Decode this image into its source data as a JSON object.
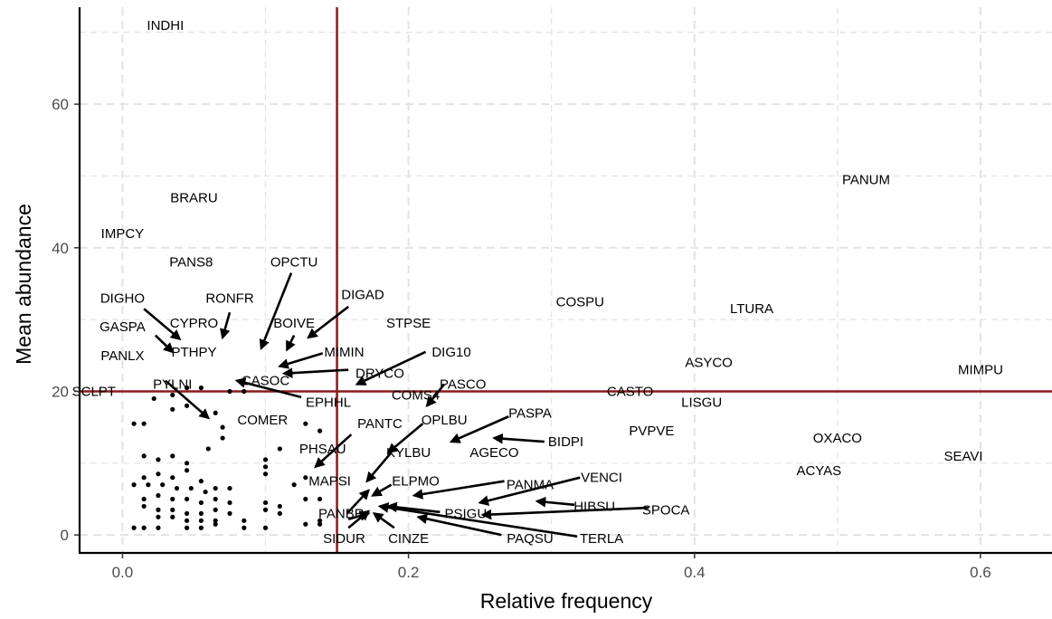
{
  "chart_data": {
    "type": "scatter",
    "xlabel": "Relative frequency",
    "ylabel": "Mean abundance",
    "xlim": [
      -0.03,
      0.65
    ],
    "ylim": [
      -2.5,
      73.5
    ],
    "x_ticks": [
      0.0,
      0.2,
      0.4,
      0.6
    ],
    "x_tick_labels": [
      "0.0",
      "0.2",
      "0.4",
      "0.6"
    ],
    "y_ticks": [
      0,
      20,
      40,
      60
    ],
    "y_tick_labels": [
      "0",
      "20",
      "40",
      "60"
    ],
    "grid": "dashed",
    "legend": "none",
    "colors": {
      "threshold_lines": "#8b1a1a",
      "points": "#000000",
      "grid": "#e3e3e3",
      "ticks": "#4d4d4d"
    },
    "thresholds": {
      "x": 0.15,
      "y": 20
    },
    "labeled_species": [
      {
        "name": "INDHI",
        "x": 0.03,
        "y": 71
      },
      {
        "name": "BRARU",
        "x": 0.05,
        "y": 47
      },
      {
        "name": "IMPCY",
        "x": 0.0,
        "y": 42
      },
      {
        "name": "PANS8",
        "x": 0.048,
        "y": 38
      },
      {
        "name": "DIGHO",
        "x": 0.0,
        "y": 33
      },
      {
        "name": "GASPA",
        "x": 0.0,
        "y": 29
      },
      {
        "name": "PANLX",
        "x": 0.0,
        "y": 25
      },
      {
        "name": "SCLPT",
        "x": -0.02,
        "y": 20
      },
      {
        "name": "CYPRO",
        "x": 0.05,
        "y": 29.5
      },
      {
        "name": "PTHPY",
        "x": 0.05,
        "y": 25.5
      },
      {
        "name": "PYLNI",
        "x": 0.035,
        "y": 21
      },
      {
        "name": "RONFR",
        "x": 0.075,
        "y": 33
      },
      {
        "name": "OPCTU",
        "x": 0.12,
        "y": 38
      },
      {
        "name": "BOIVE",
        "x": 0.12,
        "y": 29.5
      },
      {
        "name": "DIGAD",
        "x": 0.168,
        "y": 33.5
      },
      {
        "name": "MIMIN",
        "x": 0.155,
        "y": 25.5
      },
      {
        "name": "CASOC",
        "x": 0.1,
        "y": 21.5
      },
      {
        "name": "DRYCO",
        "x": 0.18,
        "y": 22.5
      },
      {
        "name": "EPHHL",
        "x": 0.144,
        "y": 18.5
      },
      {
        "name": "COMER",
        "x": 0.098,
        "y": 16
      },
      {
        "name": "STPSE",
        "x": 0.2,
        "y": 29.5
      },
      {
        "name": "DIG10",
        "x": 0.23,
        "y": 25.5
      },
      {
        "name": "COMS4",
        "x": 0.205,
        "y": 19.5
      },
      {
        "name": "PASCO",
        "x": 0.238,
        "y": 21
      },
      {
        "name": "PANTC",
        "x": 0.18,
        "y": 15.5
      },
      {
        "name": "OPLBU",
        "x": 0.225,
        "y": 16
      },
      {
        "name": "PASPA",
        "x": 0.285,
        "y": 17
      },
      {
        "name": "BIDPI",
        "x": 0.31,
        "y": 13
      },
      {
        "name": "KYLBU",
        "x": 0.2,
        "y": 11.5
      },
      {
        "name": "AGECO",
        "x": 0.26,
        "y": 11.5
      },
      {
        "name": "PHSAU",
        "x": 0.14,
        "y": 12
      },
      {
        "name": "MAPSI",
        "x": 0.145,
        "y": 7.5
      },
      {
        "name": "ELPMO",
        "x": 0.205,
        "y": 7.5
      },
      {
        "name": "PANMA",
        "x": 0.285,
        "y": 7
      },
      {
        "name": "VENCI",
        "x": 0.335,
        "y": 8
      },
      {
        "name": "HIBSU",
        "x": 0.33,
        "y": 4
      },
      {
        "name": "SPOCA",
        "x": 0.38,
        "y": 3.5
      },
      {
        "name": "PSIGU",
        "x": 0.24,
        "y": 3
      },
      {
        "name": "PANBR",
        "x": 0.153,
        "y": 3
      },
      {
        "name": "SIDUR",
        "x": 0.155,
        "y": -0.5
      },
      {
        "name": "CINZE",
        "x": 0.2,
        "y": -0.5
      },
      {
        "name": "PAQSU",
        "x": 0.285,
        "y": -0.5
      },
      {
        "name": "TERLA",
        "x": 0.335,
        "y": -0.5
      },
      {
        "name": "COSPU",
        "x": 0.32,
        "y": 32.5
      },
      {
        "name": "LTURA",
        "x": 0.44,
        "y": 31.5
      },
      {
        "name": "ASYCO",
        "x": 0.41,
        "y": 24
      },
      {
        "name": "CASTO",
        "x": 0.355,
        "y": 20
      },
      {
        "name": "LISGU",
        "x": 0.405,
        "y": 18.5
      },
      {
        "name": "PVPVE",
        "x": 0.37,
        "y": 14.5
      },
      {
        "name": "PANUM",
        "x": 0.52,
        "y": 49.5
      },
      {
        "name": "MIMPU",
        "x": 0.6,
        "y": 23
      },
      {
        "name": "OXACO",
        "x": 0.5,
        "y": 13.5
      },
      {
        "name": "SEAVI",
        "x": 0.588,
        "y": 11
      },
      {
        "name": "ACYAS",
        "x": 0.487,
        "y": 9
      }
    ],
    "unlabeled_points": [
      [
        0.008,
        15.5
      ],
      [
        0.015,
        15.5
      ],
      [
        0.022,
        19
      ],
      [
        0.035,
        19.5
      ],
      [
        0.045,
        20.5
      ],
      [
        0.055,
        20.5
      ],
      [
        0.035,
        17.5
      ],
      [
        0.045,
        18
      ],
      [
        0.065,
        17
      ],
      [
        0.075,
        20
      ],
      [
        0.085,
        20
      ],
      [
        0.07,
        15
      ],
      [
        0.07,
        13.5
      ],
      [
        0.06,
        12
      ],
      [
        0.015,
        11
      ],
      [
        0.025,
        10.5
      ],
      [
        0.035,
        11
      ],
      [
        0.045,
        10
      ],
      [
        0.015,
        8
      ],
      [
        0.025,
        8.5
      ],
      [
        0.035,
        8
      ],
      [
        0.045,
        9
      ],
      [
        0.055,
        7.5
      ],
      [
        0.065,
        6.5
      ],
      [
        0.075,
        6.5
      ],
      [
        0.008,
        7
      ],
      [
        0.018,
        7
      ],
      [
        0.028,
        7
      ],
      [
        0.038,
        6.5
      ],
      [
        0.048,
        6.5
      ],
      [
        0.058,
        6
      ],
      [
        0.015,
        5
      ],
      [
        0.025,
        5.5
      ],
      [
        0.035,
        5
      ],
      [
        0.045,
        5
      ],
      [
        0.055,
        4.5
      ],
      [
        0.065,
        5
      ],
      [
        0.075,
        4.5
      ],
      [
        0.015,
        4
      ],
      [
        0.025,
        3.5
      ],
      [
        0.035,
        3.5
      ],
      [
        0.045,
        3
      ],
      [
        0.055,
        3
      ],
      [
        0.065,
        3.5
      ],
      [
        0.075,
        3
      ],
      [
        0.025,
        2.5
      ],
      [
        0.035,
        2.5
      ],
      [
        0.045,
        2
      ],
      [
        0.055,
        2
      ],
      [
        0.065,
        2
      ],
      [
        0.085,
        2
      ],
      [
        0.008,
        1
      ],
      [
        0.015,
        1
      ],
      [
        0.025,
        1
      ],
      [
        0.045,
        1
      ],
      [
        0.055,
        1
      ],
      [
        0.065,
        1.5
      ],
      [
        0.085,
        1
      ],
      [
        0.1,
        10.5
      ],
      [
        0.1,
        9.5
      ],
      [
        0.1,
        8.5
      ],
      [
        0.1,
        4.5
      ],
      [
        0.1,
        3.5
      ],
      [
        0.1,
        1
      ],
      [
        0.11,
        12
      ],
      [
        0.11,
        4
      ],
      [
        0.11,
        3
      ],
      [
        0.12,
        7
      ],
      [
        0.128,
        15.5
      ],
      [
        0.128,
        8
      ],
      [
        0.128,
        5
      ],
      [
        0.128,
        1.5
      ],
      [
        0.138,
        14.5
      ],
      [
        0.138,
        5
      ],
      [
        0.138,
        2
      ],
      [
        0.138,
        1.5
      ]
    ],
    "arrows": [
      [
        "DIGHO",
        0.015,
        31.5,
        0.04,
        27.3
      ],
      [
        "GASPA",
        0.023,
        27.8,
        0.035,
        25.5
      ],
      [
        "SCLPT",
        0.03,
        21.5,
        0.06,
        16.3
      ],
      [
        "RONFR",
        0.075,
        31,
        0.07,
        27.5
      ],
      [
        "OPCTU",
        0.118,
        36.5,
        0.097,
        26
      ],
      [
        "BOIVE",
        0.12,
        27.8,
        0.115,
        25.8
      ],
      [
        "DIGAD",
        0.158,
        31.8,
        0.13,
        27.5
      ],
      [
        "MIMIN",
        0.14,
        25.3,
        0.11,
        23.5
      ],
      [
        "DRYCO",
        0.158,
        23,
        0.113,
        22.5
      ],
      [
        "DIG10",
        0.212,
        25.5,
        0.164,
        21
      ],
      [
        "EPHHL",
        0.125,
        19.2,
        0.08,
        21.5
      ],
      [
        "PASCO",
        0.225,
        21,
        0.213,
        18
      ],
      [
        "OPLBU",
        0.21,
        15.5,
        0.186,
        11.5
      ],
      [
        "PANTC",
        0.16,
        14,
        0.135,
        9.5
      ],
      [
        "PASPA",
        0.27,
        16.5,
        0.23,
        13
      ],
      [
        "BIDPI",
        0.295,
        13,
        0.26,
        13.5
      ],
      [
        "KYLBU",
        0.188,
        11.5,
        0.171,
        7.5
      ],
      [
        "VENCI",
        0.32,
        8,
        0.25,
        4.5
      ],
      [
        "PANMA",
        0.267,
        7.5,
        0.204,
        5.5
      ],
      [
        "ELPMO",
        0.188,
        7,
        0.175,
        5.5
      ],
      [
        "HIBSU",
        0.316,
        4.2,
        0.29,
        4.7
      ],
      [
        "SPOCA",
        0.368,
        3.8,
        0.252,
        2.8
      ],
      [
        "PSIGU",
        0.222,
        3.2,
        0.186,
        4
      ],
      [
        "PANBR",
        0.157,
        3,
        0.172,
        6.2
      ],
      [
        "PANBR",
        0.158,
        2.2,
        0.172,
        3
      ],
      [
        "SIDUR",
        0.158,
        1,
        0.172,
        3.3
      ],
      [
        "CINZE",
        0.19,
        1,
        0.176,
        3
      ],
      [
        "PAQSU",
        0.265,
        0,
        0.207,
        2.5
      ],
      [
        "TERLA",
        0.318,
        -0.2,
        0.18,
        4
      ]
    ]
  }
}
